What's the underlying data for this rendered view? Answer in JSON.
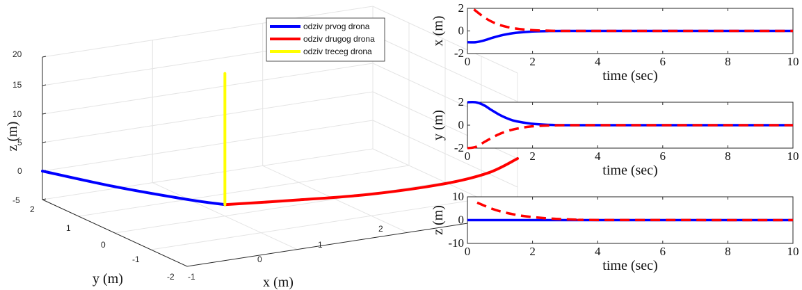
{
  "chart_data": [
    {
      "type": "line3d",
      "xlabel": "x (m)",
      "ylabel": "y (m)",
      "zlabel": "z (m)",
      "xlim": [
        -1,
        2
      ],
      "ylim": [
        -2,
        2
      ],
      "zlim": [
        -5,
        20
      ],
      "x_ticks": [
        "-1",
        "0",
        "1",
        "2"
      ],
      "y_ticks": [
        "-2",
        "-1",
        "0",
        "1",
        "2"
      ],
      "z_ticks": [
        "-5",
        "0",
        "5",
        "10",
        "15",
        "20"
      ],
      "grid": true,
      "legend_position": "top-right",
      "series": [
        {
          "name": "odziv prvog drona",
          "color": "#0000ff",
          "points": [
            [
              -1,
              2,
              0
            ],
            [
              -0.6,
              1.2,
              -1.6
            ],
            [
              -0.2,
              0.4,
              -2.7
            ],
            [
              0,
              0,
              -3
            ]
          ]
        },
        {
          "name": "odziv drugog drona",
          "color": "#ff0000",
          "points": [
            [
              0,
              0,
              -3
            ],
            [
              0.5,
              -0.5,
              -2.2
            ],
            [
              1.0,
              -1.0,
              -1.2
            ],
            [
              1.5,
              -1.5,
              0.6
            ],
            [
              1.8,
              -1.8,
              2.5
            ],
            [
              2,
              -2,
              5
            ]
          ]
        },
        {
          "name": "odziv treceg drona",
          "color": "#ffff00",
          "points": [
            [
              0,
              0,
              -3
            ],
            [
              0,
              0,
              2
            ],
            [
              0,
              0,
              8
            ],
            [
              0,
              0,
              14
            ],
            [
              0,
              0,
              20
            ]
          ]
        }
      ]
    },
    {
      "type": "line",
      "xlabel": "time (sec)",
      "ylabel": "x (m)",
      "xlim": [
        0,
        10
      ],
      "ylim": [
        -2,
        2
      ],
      "x_ticks": [
        "0",
        "2",
        "4",
        "6",
        "8",
        "10"
      ],
      "y_ticks": [
        "-2",
        "0",
        "2"
      ],
      "series": [
        {
          "color": "#0000ff",
          "style": "solid",
          "x": [
            0,
            0.25,
            0.5,
            0.75,
            1,
            1.25,
            1.5,
            2,
            2.5,
            3,
            4,
            10
          ],
          "y": [
            -1,
            -1,
            -0.85,
            -0.62,
            -0.42,
            -0.27,
            -0.16,
            -0.05,
            -0.01,
            0,
            0,
            0
          ]
        },
        {
          "color": "#ff0000",
          "style": "dashed",
          "x": [
            0.2,
            0.4,
            0.6,
            0.8,
            1.0,
            1.3,
            1.6,
            2,
            2.5,
            3,
            4,
            10
          ],
          "y": [
            1.9,
            1.45,
            1.05,
            0.75,
            0.52,
            0.3,
            0.17,
            0.07,
            0.02,
            0,
            0,
            0
          ]
        }
      ]
    },
    {
      "type": "line",
      "xlabel": "time (sec)",
      "ylabel": "y (m)",
      "xlim": [
        0,
        10
      ],
      "ylim": [
        -2,
        2
      ],
      "x_ticks": [
        "0",
        "2",
        "4",
        "6",
        "8",
        "10"
      ],
      "y_ticks": [
        "-2",
        "0",
        "2"
      ],
      "series": [
        {
          "color": "#0000ff",
          "style": "solid",
          "x": [
            0,
            0.25,
            0.5,
            0.75,
            1,
            1.25,
            1.5,
            2,
            2.5,
            3,
            4,
            10
          ],
          "y": [
            2,
            2,
            1.75,
            1.3,
            0.88,
            0.56,
            0.34,
            0.12,
            0.03,
            0,
            0,
            0
          ]
        },
        {
          "color": "#ff0000",
          "style": "dashed",
          "x": [
            0,
            0.25,
            0.5,
            0.75,
            1,
            1.3,
            1.6,
            2,
            2.5,
            3,
            4,
            10
          ],
          "y": [
            -2,
            -1.9,
            -1.5,
            -1.1,
            -0.75,
            -0.45,
            -0.26,
            -0.1,
            -0.03,
            0,
            0,
            0
          ]
        }
      ]
    },
    {
      "type": "line",
      "xlabel": "time (sec)",
      "ylabel": "z (m)",
      "xlim": [
        0,
        10
      ],
      "ylim": [
        -10,
        10
      ],
      "x_ticks": [
        "0",
        "2",
        "4",
        "6",
        "8",
        "10"
      ],
      "y_ticks": [
        "-10",
        "0",
        "10"
      ],
      "series": [
        {
          "color": "#0000ff",
          "style": "solid",
          "x": [
            0,
            10
          ],
          "y": [
            0,
            0
          ]
        },
        {
          "color": "#ff0000",
          "style": "dashed",
          "x": [
            0.3,
            0.5,
            0.75,
            1,
            1.3,
            1.6,
            2,
            2.5,
            3,
            3.5,
            4,
            10
          ],
          "y": [
            7.5,
            6.3,
            4.9,
            3.8,
            2.8,
            2.0,
            1.3,
            0.7,
            0.35,
            0.15,
            0.05,
            0
          ]
        }
      ]
    }
  ]
}
